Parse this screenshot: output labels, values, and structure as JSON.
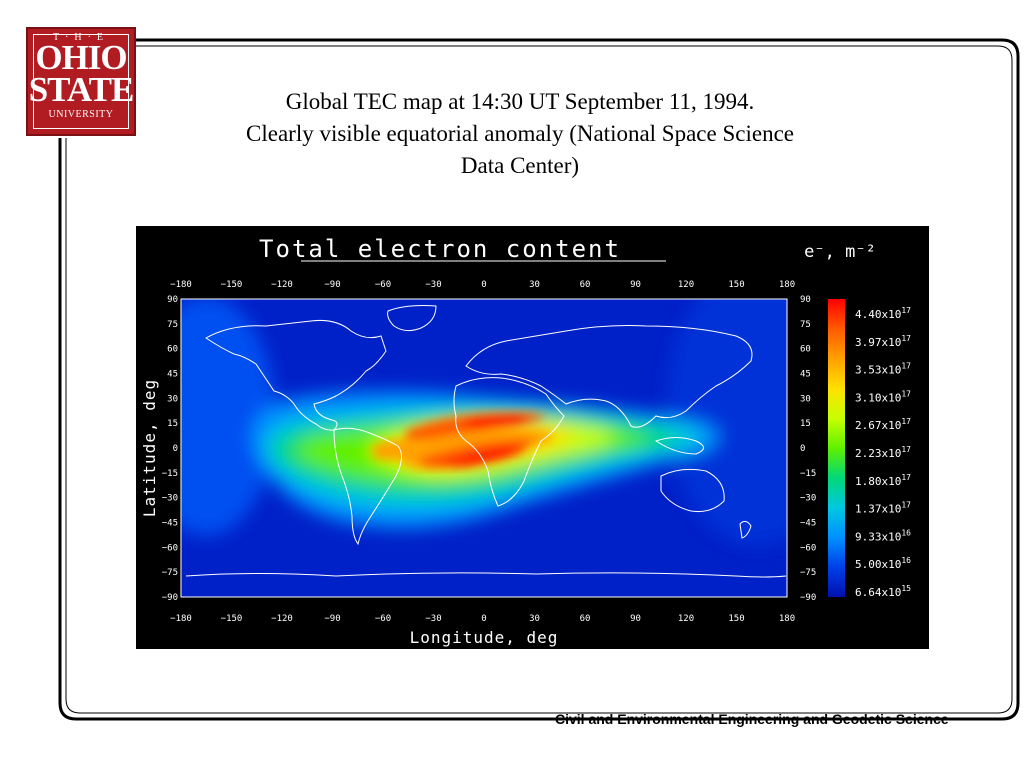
{
  "logo": {
    "line1": "T·H·E",
    "line2": "OHIO",
    "line3": "STATE",
    "line4": "UNIVERSITY"
  },
  "slide": {
    "title_line1": "Global  TEC map at 14:30 UT September 11, 1994.",
    "title_line2": "Clearly visible equatorial anomaly (National Space Science",
    "title_line3": "Data Center)",
    "footer": "Civil and Environmental Engineering and Geodetic Science"
  },
  "map": {
    "title": "Total electron content",
    "units": "e⁻, m⁻²",
    "xlabel": "Longitude, deg",
    "ylabel": "Latitude, deg",
    "lon_ticks": [
      "-180",
      "-150",
      "-120",
      "-90",
      "-60",
      "-30",
      "0",
      "30",
      "60",
      "90",
      "120",
      "150",
      "180"
    ],
    "lat_ticks": [
      "90",
      "75",
      "60",
      "45",
      "30",
      "15",
      "0",
      "-15",
      "-30",
      "-45",
      "-60",
      "-75",
      "-90"
    ],
    "colorbar": [
      {
        "label": "4.40x10",
        "exp": "17",
        "color": "#ff0000"
      },
      {
        "label": "3.97x10",
        "exp": "17",
        "color": "#ff5a00"
      },
      {
        "label": "3.53x10",
        "exp": "17",
        "color": "#ffa000"
      },
      {
        "label": "3.10x10",
        "exp": "17",
        "color": "#ffe000"
      },
      {
        "label": "2.67x10",
        "exp": "17",
        "color": "#c8ff00"
      },
      {
        "label": "2.23x10",
        "exp": "17",
        "color": "#60f000"
      },
      {
        "label": "1.80x10",
        "exp": "17",
        "color": "#00d878"
      },
      {
        "label": "1.37x10",
        "exp": "17",
        "color": "#00c8e0"
      },
      {
        "label": "9.33x10",
        "exp": "16",
        "color": "#0090ff"
      },
      {
        "label": "5.00x10",
        "exp": "16",
        "color": "#0040e8"
      },
      {
        "label": "6.64x10",
        "exp": "15",
        "color": "#0010b0"
      }
    ]
  }
}
